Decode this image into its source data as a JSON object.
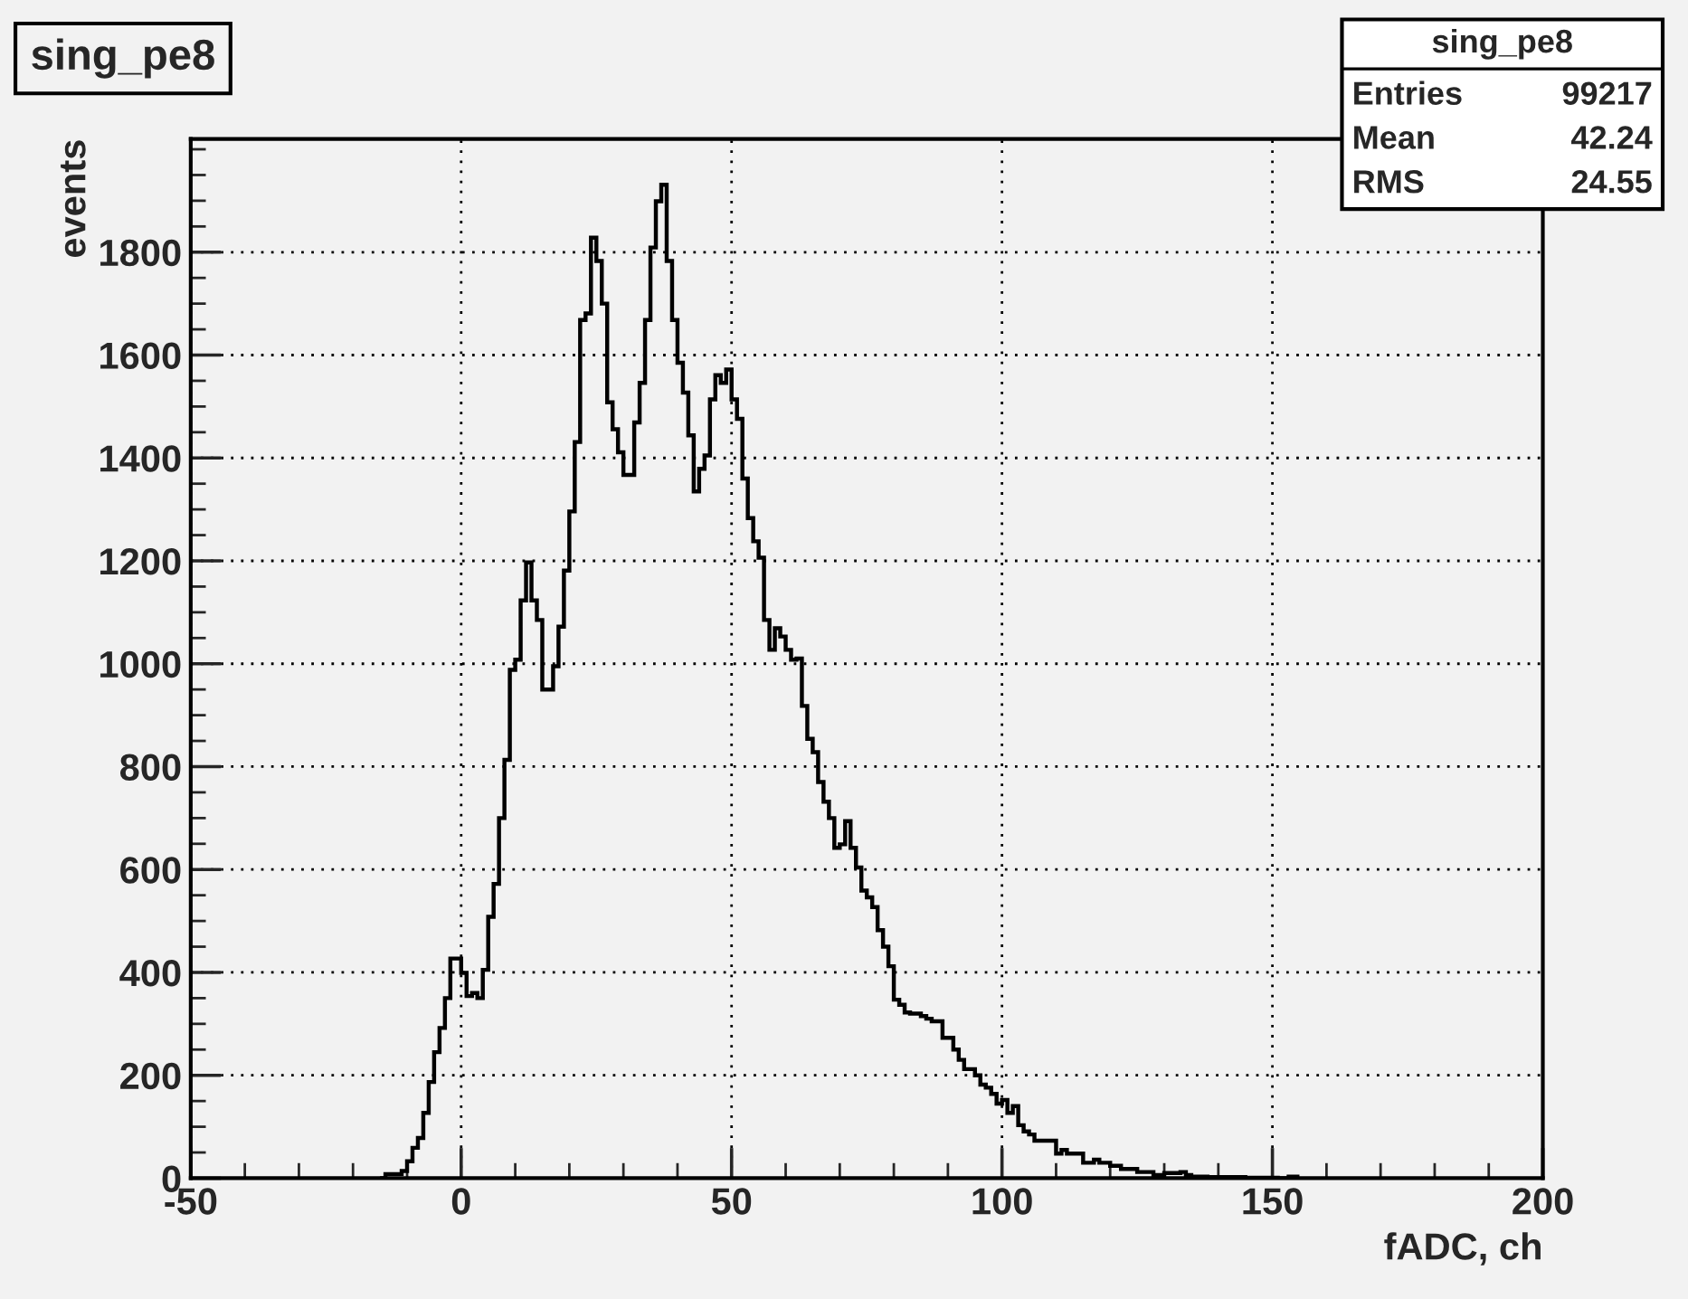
{
  "chart_data": {
    "type": "histogram",
    "title": "sing_pe8",
    "xlabel": "fADC, ch",
    "ylabel": "events",
    "annotations": [
      "sing_pe8",
      "Entries",
      "99217",
      "Mean",
      "42.24",
      "RMS",
      "24.55"
    ],
    "bins": [
      -15,
      -14,
      -13,
      -12,
      -11,
      -10,
      -9,
      -8,
      -7,
      -6,
      -5,
      -4,
      -3,
      -2,
      -1,
      0,
      1,
      2,
      3,
      4,
      5,
      6,
      7,
      8,
      9,
      10,
      11,
      12,
      13,
      14,
      15,
      16,
      17,
      18,
      19,
      20,
      21,
      22,
      23,
      24,
      25,
      26,
      27,
      28,
      29,
      30,
      31,
      32,
      33,
      34,
      35,
      36,
      37,
      38,
      39,
      40,
      41,
      42,
      43,
      44,
      45,
      46,
      47,
      48,
      49,
      50,
      51,
      52,
      53,
      54,
      55,
      56,
      57,
      58,
      59,
      60,
      61,
      62,
      63,
      64,
      65,
      66,
      67,
      68,
      69,
      70,
      71,
      72,
      73,
      74,
      75,
      76,
      77,
      78,
      79,
      80,
      81,
      82,
      83,
      84,
      85,
      86,
      87,
      88,
      89,
      90,
      91,
      92,
      93,
      94,
      95,
      96,
      97,
      98,
      99,
      100,
      101,
      102,
      103,
      104,
      105,
      106,
      107,
      108,
      109,
      110,
      111,
      112,
      113,
      114,
      115,
      116,
      117,
      118,
      119,
      120,
      121,
      122,
      123,
      124,
      125,
      126,
      127,
      128,
      129,
      130,
      131,
      132,
      133,
      134,
      135,
      136,
      137,
      138,
      139,
      140,
      141,
      142,
      143,
      144,
      145,
      146,
      147,
      148,
      149,
      150,
      151,
      152,
      153,
      154,
      155
    ],
    "values": [
      0,
      8,
      8,
      8,
      14,
      33,
      59,
      78,
      127,
      187,
      245,
      292,
      350,
      427,
      427,
      399,
      354,
      360,
      350,
      405,
      508,
      572,
      700,
      813,
      988,
      1008,
      1123,
      1197,
      1123,
      1085,
      950,
      950,
      995,
      1072,
      1181,
      1296,
      1431,
      1668,
      1681,
      1828,
      1783,
      1700,
      1508,
      1456,
      1411,
      1367,
      1367,
      1469,
      1546,
      1668,
      1809,
      1899,
      1931,
      1783,
      1668,
      1585,
      1527,
      1444,
      1335,
      1379,
      1405,
      1514,
      1561,
      1546,
      1572,
      1514,
      1476,
      1360,
      1283,
      1238,
      1206,
      1085,
      1027,
      1069,
      1053,
      1027,
      1008,
      1010,
      918,
      854,
      828,
      770,
      732,
      700,
      642,
      649,
      694,
      642,
      604,
      559,
      546,
      527,
      482,
      450,
      412,
      347,
      337,
      322,
      320,
      320,
      315,
      310,
      305,
      305,
      273,
      273,
      250,
      230,
      212,
      212,
      200,
      182,
      176,
      164,
      145,
      152,
      127,
      140,
      103,
      91,
      85,
      73,
      73,
      73,
      73,
      48,
      55,
      48,
      48,
      48,
      30,
      30,
      36,
      30,
      30,
      24,
      24,
      18,
      18,
      18,
      12,
      12,
      12,
      6,
      6,
      10,
      10,
      10,
      12,
      6,
      3,
      3,
      3,
      2,
      2,
      2,
      2,
      2,
      2,
      2,
      1,
      1,
      1,
      1,
      1,
      1,
      0,
      0,
      3,
      3
    ],
    "color": "#000000",
    "xlim": [
      -50,
      200
    ],
    "xticks": [
      -50,
      0,
      50,
      100,
      150,
      200
    ],
    "ylim": [
      0,
      2020
    ],
    "yticks": [
      0,
      200,
      400,
      600,
      800,
      1000,
      1200,
      1400,
      1600,
      1800
    ],
    "grid": true
  }
}
